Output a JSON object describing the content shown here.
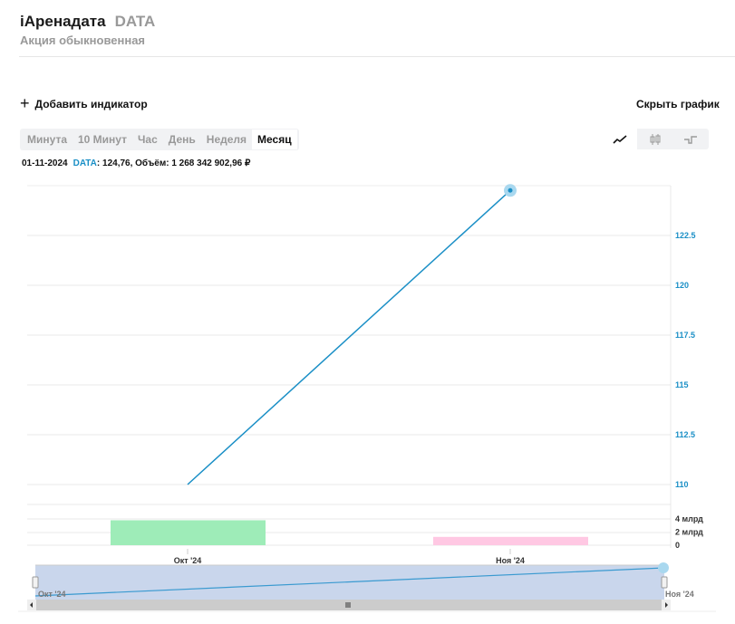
{
  "header": {
    "title": "iАренадата",
    "ticker": "DATA",
    "subtitle": "Акция обыкновенная"
  },
  "toolbar": {
    "add_indicator": "Добавить индикатор",
    "hide_chart": "Скрыть график"
  },
  "periods": [
    {
      "label": "Минута"
    },
    {
      "label": "10 Минут"
    },
    {
      "label": "Час"
    },
    {
      "label": "День"
    },
    {
      "label": "Неделя"
    },
    {
      "label": "Месяц",
      "active": true
    }
  ],
  "chart_types": [
    {
      "icon": "line-chart-icon",
      "active": true
    },
    {
      "icon": "candlestick-icon"
    },
    {
      "icon": "step-line-icon"
    }
  ],
  "info": {
    "date": "01-11-2024",
    "symbol": "DATA",
    "rest": ": 124,76, Объём: 1 268 342 902,96 ₽"
  },
  "chart_data": {
    "type": "line",
    "categories": [
      "Окт '24",
      "Ноя '24"
    ],
    "series": [
      {
        "name": "DATA",
        "values": [
          110,
          124.76
        ],
        "color": "#1a8fc6"
      }
    ],
    "ylim": [
      110,
      125
    ],
    "yticks": [
      "110",
      "112.5",
      "115",
      "117.5",
      "120",
      "122.5"
    ],
    "yticks_values": [
      110,
      112.5,
      115,
      117.5,
      120,
      122.5
    ],
    "grid": true,
    "volume": {
      "type": "bar",
      "values": [
        3.8,
        1.27
      ],
      "unit": "млрд",
      "colors": [
        "#9eecb8",
        "#ffc8e3"
      ],
      "yticks": [
        "0",
        "2 млрд",
        "4 млрд"
      ],
      "yticks_values": [
        0,
        2,
        4
      ]
    },
    "navigator": {
      "labels": [
        "Окт '24",
        "Ноя '24"
      ]
    }
  }
}
